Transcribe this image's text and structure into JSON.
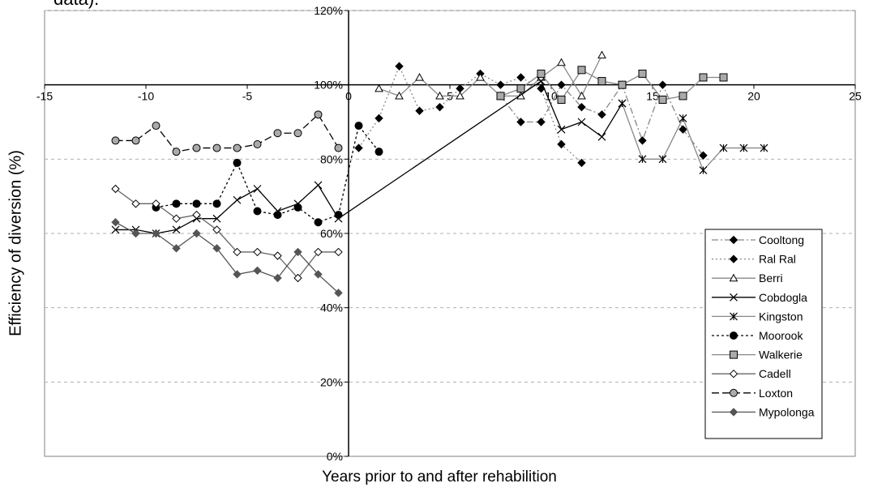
{
  "chart_data": {
    "type": "line",
    "title_fragment": "data).",
    "xlabel": "Years prior to and after rehabilition",
    "ylabel": "Efficiency of diversion (%)",
    "xlim": [
      -15,
      25
    ],
    "ylim": [
      0,
      120
    ],
    "x_ticks": [
      "-15",
      "-10",
      "-5",
      "0",
      "5",
      "10",
      "15",
      "20",
      "25"
    ],
    "y_ticks": [
      "0%",
      "20%",
      "40%",
      "60%",
      "80%",
      "100%",
      "120%"
    ],
    "grid": "horizontal dashed",
    "legend_position": "right",
    "series": [
      {
        "name": "Cooltong",
        "color": "#000000",
        "line_color": "#888888",
        "dash": "8,3,2,3",
        "marker": "diamond-filled",
        "points": [
          [
            7.5,
            97
          ],
          [
            8.5,
            90
          ],
          [
            9.5,
            90
          ],
          [
            10.5,
            100
          ],
          [
            11.5,
            94
          ],
          [
            12.5,
            92
          ],
          [
            13.5,
            100
          ],
          [
            14.5,
            85
          ],
          [
            15.5,
            100
          ],
          [
            16.5,
            88
          ],
          [
            17.5,
            81
          ]
        ]
      },
      {
        "name": "Ral Ral",
        "color": "#000000",
        "line_color": "#888888",
        "dash": "2,3",
        "marker": "diamond-filled",
        "points": [
          [
            0.5,
            83
          ],
          [
            1.5,
            91
          ],
          [
            2.5,
            105
          ],
          [
            3.5,
            93
          ],
          [
            4.5,
            94
          ],
          [
            5.5,
            99
          ],
          [
            6.5,
            103
          ],
          [
            7.5,
            100
          ],
          [
            8.5,
            102
          ],
          [
            9.5,
            99
          ],
          [
            10.5,
            84
          ],
          [
            11.5,
            79
          ]
        ]
      },
      {
        "name": "Berri",
        "color": "#000000",
        "line_color": "#888888",
        "dash": "",
        "marker": "triangle-open",
        "points": [
          [
            1.5,
            99
          ],
          [
            2.5,
            97
          ],
          [
            3.5,
            102
          ],
          [
            4.5,
            97
          ],
          [
            5.5,
            97
          ],
          [
            6.5,
            102
          ],
          [
            7.5,
            97
          ],
          [
            8.5,
            97
          ],
          [
            9.5,
            102
          ],
          [
            10.5,
            106
          ],
          [
            11.5,
            97
          ],
          [
            12.5,
            108
          ]
        ]
      },
      {
        "name": "Cobdogla",
        "color": "#000000",
        "line_color": "#000000",
        "dash": "",
        "marker": "x",
        "points": [
          [
            -11.5,
            61
          ],
          [
            -10.5,
            61
          ],
          [
            -9.5,
            60
          ],
          [
            -8.5,
            61
          ],
          [
            -7.5,
            64
          ],
          [
            -6.5,
            64
          ],
          [
            -5.5,
            69
          ],
          [
            -4.5,
            72
          ],
          [
            -3.5,
            66
          ],
          [
            -2.5,
            68
          ],
          [
            -1.5,
            73
          ],
          [
            -0.5,
            64
          ],
          [
            9.5,
            101
          ],
          [
            10.5,
            88
          ],
          [
            11.5,
            90
          ],
          [
            12.5,
            86
          ],
          [
            13.5,
            95
          ]
        ]
      },
      {
        "name": "Kingston",
        "color": "#000000",
        "line_color": "#888888",
        "dash": "",
        "marker": "asterisk",
        "points": [
          [
            13.5,
            95
          ],
          [
            14.5,
            80
          ],
          [
            15.5,
            80
          ],
          [
            16.5,
            91
          ],
          [
            17.5,
            77
          ],
          [
            18.5,
            83
          ],
          [
            19.5,
            83
          ],
          [
            20.5,
            83
          ]
        ]
      },
      {
        "name": "Moorook",
        "color": "#000000",
        "line_color": "#000000",
        "dash": "3,3",
        "marker": "circle-filled",
        "points": [
          [
            -9.5,
            67
          ],
          [
            -8.5,
            68
          ],
          [
            -7.5,
            68
          ],
          [
            -6.5,
            68
          ],
          [
            -5.5,
            79
          ],
          [
            -4.5,
            66
          ],
          [
            -3.5,
            65
          ],
          [
            -2.5,
            67
          ],
          [
            -1.5,
            63
          ],
          [
            -0.5,
            65
          ],
          [
            0.5,
            89
          ],
          [
            1.5,
            82
          ]
        ]
      },
      {
        "name": "Walkerie",
        "color": "#aaaaaa",
        "line_color": "#888888",
        "dash": "",
        "marker": "square-filled",
        "points": [
          [
            7.5,
            97
          ],
          [
            8.5,
            99
          ],
          [
            9.5,
            103
          ],
          [
            10.5,
            96
          ],
          [
            11.5,
            104
          ],
          [
            12.5,
            101
          ],
          [
            13.5,
            100
          ],
          [
            14.5,
            103
          ],
          [
            15.5,
            96
          ],
          [
            16.5,
            97
          ],
          [
            17.5,
            102
          ],
          [
            18.5,
            102
          ]
        ]
      },
      {
        "name": "Cadell",
        "color": "#000000",
        "line_color": "#666666",
        "dash": "",
        "marker": "diamond-open",
        "points": [
          [
            -11.5,
            72
          ],
          [
            -10.5,
            68
          ],
          [
            -9.5,
            68
          ],
          [
            -8.5,
            64
          ],
          [
            -7.5,
            65
          ],
          [
            -6.5,
            61
          ],
          [
            -5.5,
            55
          ],
          [
            -4.5,
            55
          ],
          [
            -3.5,
            54
          ],
          [
            -2.5,
            48
          ],
          [
            -1.5,
            55
          ],
          [
            -0.5,
            55
          ]
        ]
      },
      {
        "name": "Loxton",
        "color": "#aaaaaa",
        "line_color": "#000000",
        "dash": "9,4",
        "marker": "circle-filled",
        "points": [
          [
            -11.5,
            85
          ],
          [
            -10.5,
            85
          ],
          [
            -9.5,
            89
          ],
          [
            -8.5,
            82
          ],
          [
            -7.5,
            83
          ],
          [
            -6.5,
            83
          ],
          [
            -5.5,
            83
          ],
          [
            -4.5,
            84
          ],
          [
            -3.5,
            87
          ],
          [
            -2.5,
            87
          ],
          [
            -1.5,
            92
          ],
          [
            -0.5,
            83
          ]
        ]
      },
      {
        "name": "Mypolonga",
        "color": "#555555",
        "line_color": "#555555",
        "dash": "",
        "marker": "diamond-filled",
        "points": [
          [
            -11.5,
            63
          ],
          [
            -10.5,
            60
          ],
          [
            -9.5,
            60
          ],
          [
            -8.5,
            56
          ],
          [
            -7.5,
            60
          ],
          [
            -6.5,
            56
          ],
          [
            -5.5,
            49
          ],
          [
            -4.5,
            50
          ],
          [
            -3.5,
            48
          ],
          [
            -2.5,
            55
          ],
          [
            -1.5,
            49
          ],
          [
            -0.5,
            44
          ]
        ]
      }
    ]
  }
}
